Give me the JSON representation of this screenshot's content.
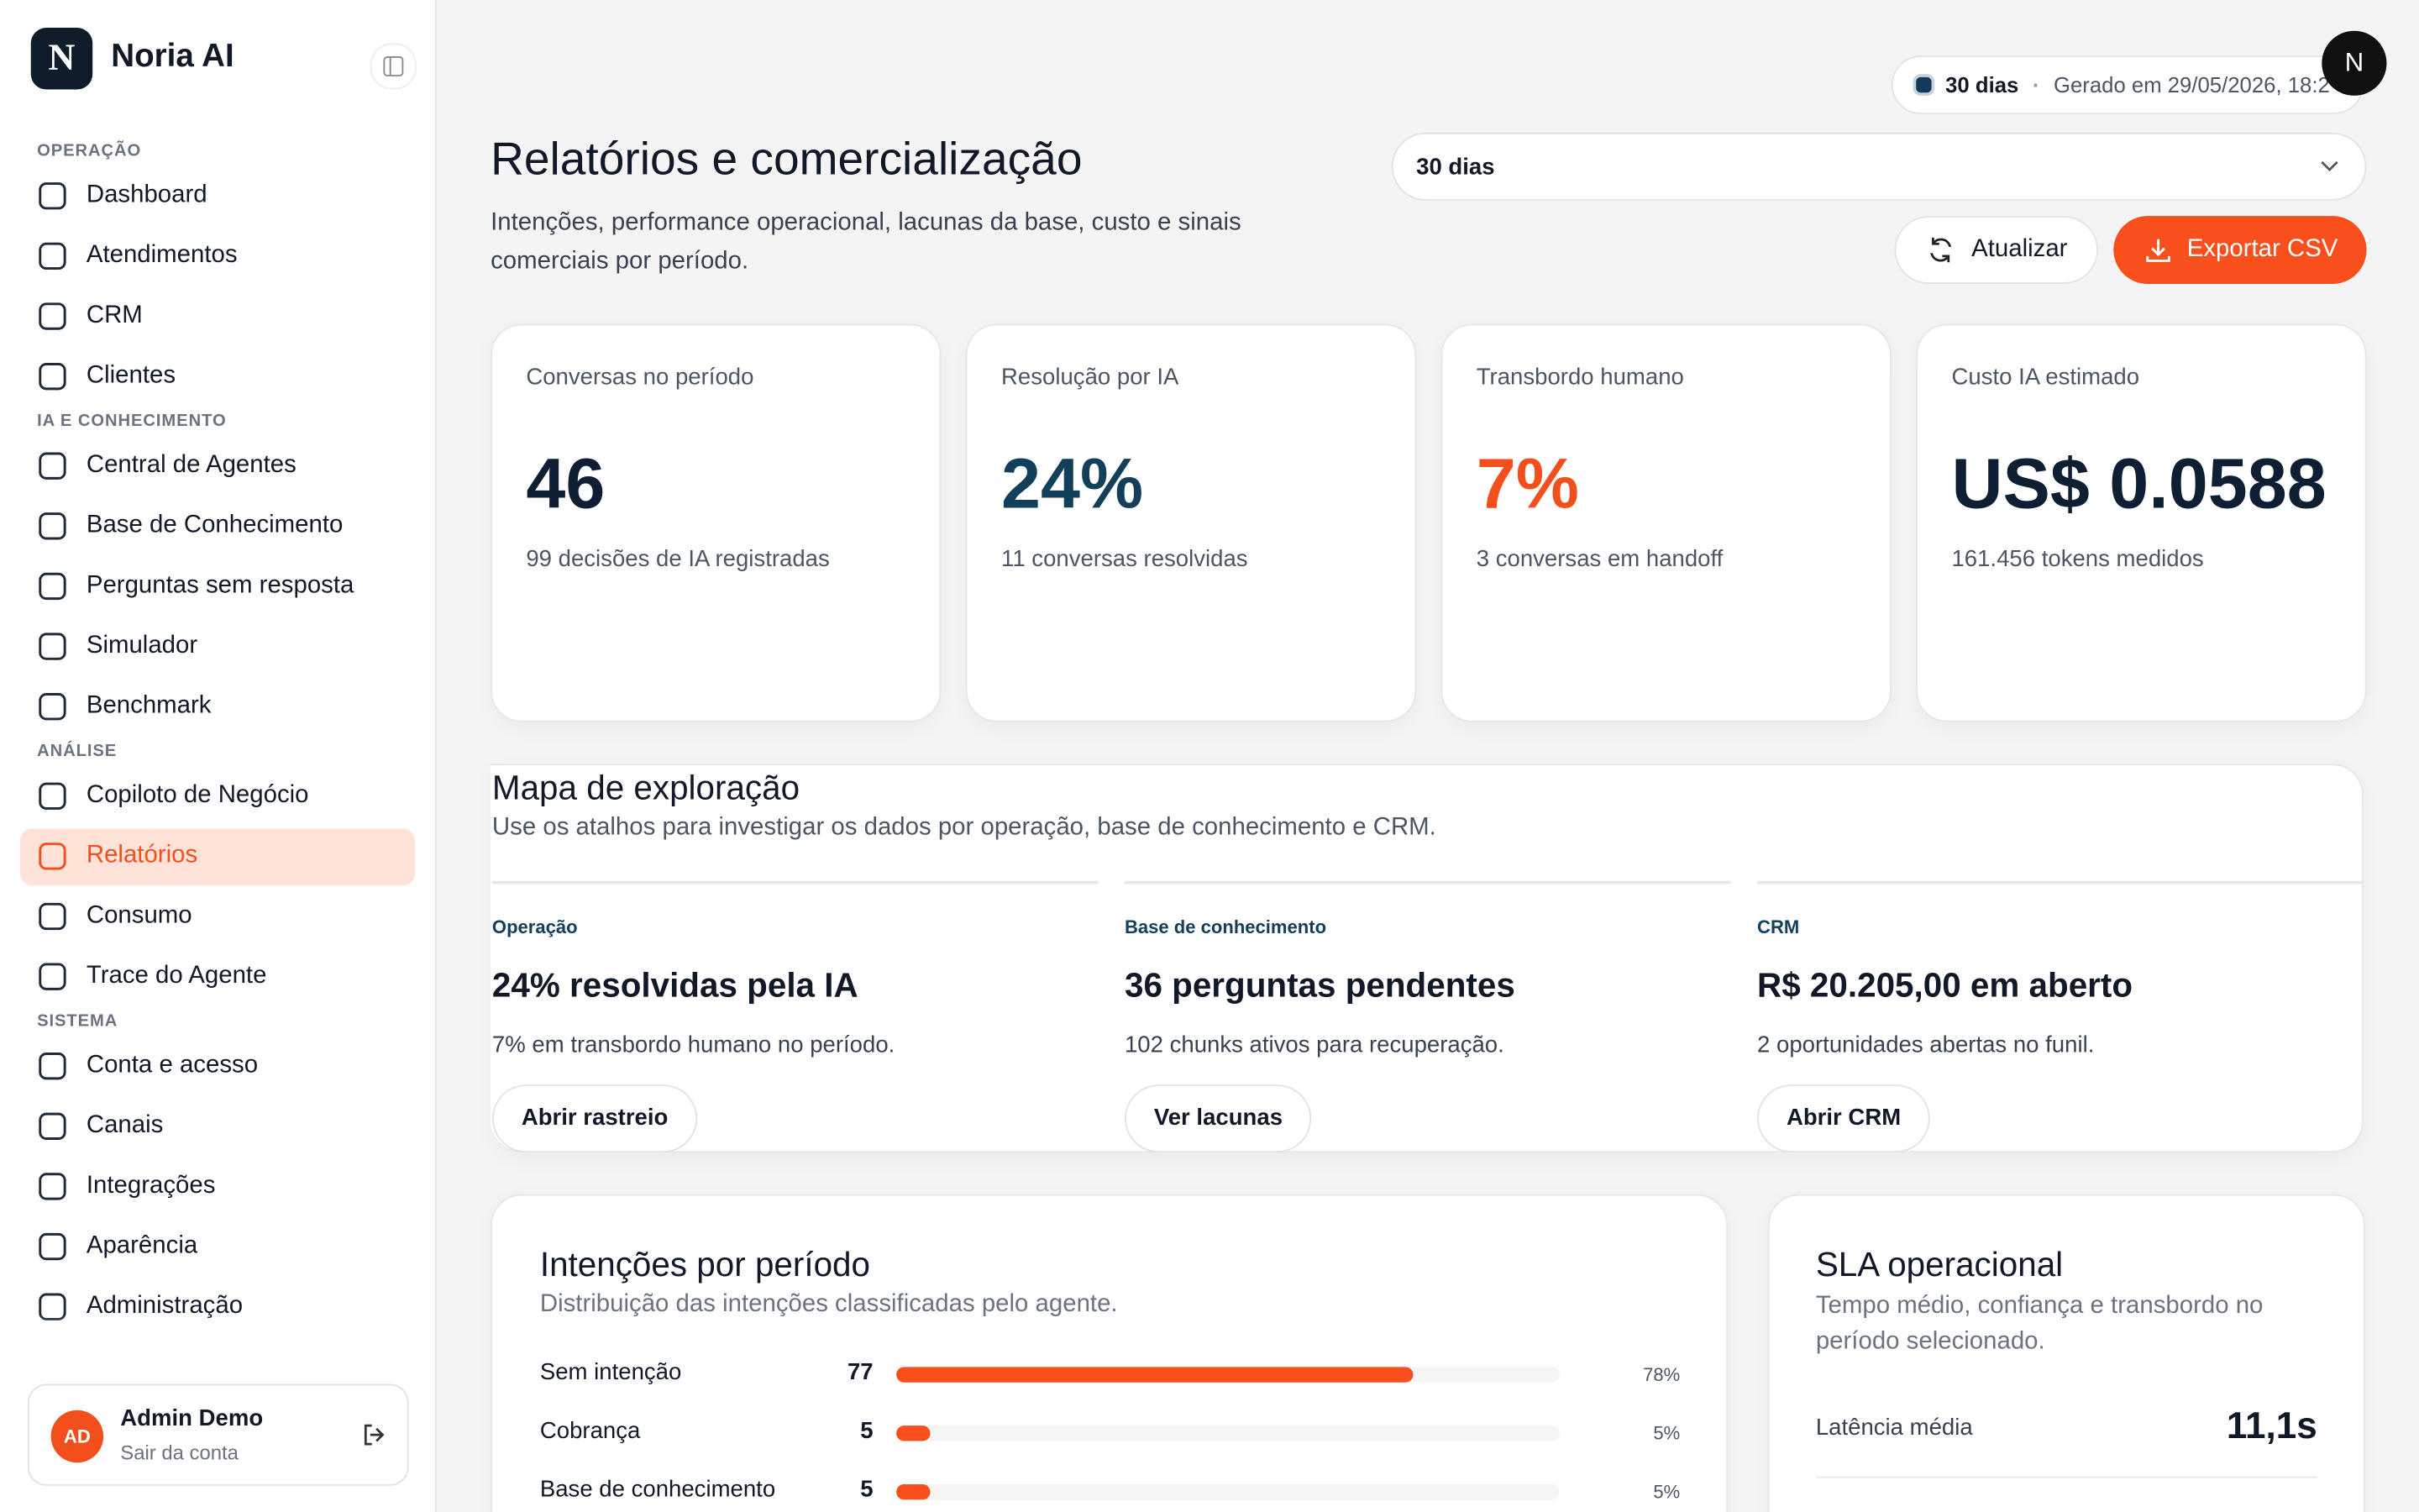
{
  "sidebar": {
    "brand": "Noria AI",
    "sections": [
      {
        "title": "OPERAÇÃO",
        "items": [
          {
            "label": "Dashboard"
          },
          {
            "label": "Atendimentos"
          },
          {
            "label": "CRM"
          },
          {
            "label": "Clientes"
          }
        ]
      },
      {
        "title": "IA E CONHECIMENTO",
        "items": [
          {
            "label": "Central de Agentes"
          },
          {
            "label": "Base de Conhecimento"
          },
          {
            "label": "Perguntas sem resposta"
          },
          {
            "label": "Simulador"
          },
          {
            "label": "Benchmark"
          }
        ]
      },
      {
        "title": "ANÁLISE",
        "items": [
          {
            "label": "Copiloto de Negócio"
          },
          {
            "label": "Relatórios",
            "active": true
          },
          {
            "label": "Consumo"
          },
          {
            "label": "Trace do Agente"
          }
        ]
      },
      {
        "title": "SISTEMA",
        "items": [
          {
            "label": "Conta e acesso"
          },
          {
            "label": "Canais"
          },
          {
            "label": "Integrações"
          },
          {
            "label": "Aparência"
          },
          {
            "label": "Administração"
          }
        ]
      }
    ],
    "user": {
      "initials": "AD",
      "name": "Admin Demo",
      "action": "Sair da conta"
    }
  },
  "header": {
    "period": "30 dias",
    "generated": "Gerado em 29/05/2026, 18:2",
    "avatar": "N",
    "title": "Relatórios e comercialização",
    "subtitle": "Intenções, performance operacional, lacunas da base, custo e sinais comerciais por período.",
    "select": "30 dias",
    "refresh": "Atualizar",
    "export": "Exportar CSV"
  },
  "kpis": [
    {
      "label": "Conversas no período",
      "value": "46",
      "note": "99 decisões de IA registradas"
    },
    {
      "label": "Resolução por IA",
      "value": "24%",
      "note": "11 conversas resolvidas"
    },
    {
      "label": "Transbordo humano",
      "value": "7%",
      "note": "3 conversas em handoff"
    },
    {
      "label": "Custo IA estimado",
      "value": "US$ 0.0588",
      "note": "161.456 tokens medidos"
    }
  ],
  "exploration": {
    "title": "Mapa de exploração",
    "subtitle": "Use os atalhos para investigar os dados por operação, base de conhecimento e CRM.",
    "columns": [
      {
        "label": "Operação",
        "headline": "24% resolvidas pela IA",
        "note": "7% em transbordo humano no período.",
        "button": "Abrir rastreio"
      },
      {
        "label": "Base de conhecimento",
        "headline": "36 perguntas pendentes",
        "note": "102 chunks ativos para recuperação.",
        "button": "Ver lacunas"
      },
      {
        "label": "CRM",
        "headline": "R$ 20.205,00 em aberto",
        "note": "2 oportunidades abertas no funil.",
        "button": "Abrir CRM"
      }
    ]
  },
  "intents": {
    "title": "Intenções por período",
    "subtitle": "Distribuição das intenções classificadas pelo agente.",
    "rows": [
      {
        "name": "Sem intenção",
        "count": 77,
        "share": 78,
        "share_label": "78%"
      },
      {
        "name": "Cobrança",
        "count": 5,
        "share": 5,
        "share_label": "5%"
      },
      {
        "name": "Base de conhecimento",
        "count": 5,
        "share": 5,
        "share_label": "5%"
      }
    ]
  },
  "sla": {
    "title": "SLA operacional",
    "subtitle": "Tempo médio, confiança e transbordo no período selecionado.",
    "rows": [
      {
        "label": "Latência média",
        "value": "11,1s"
      }
    ]
  }
}
